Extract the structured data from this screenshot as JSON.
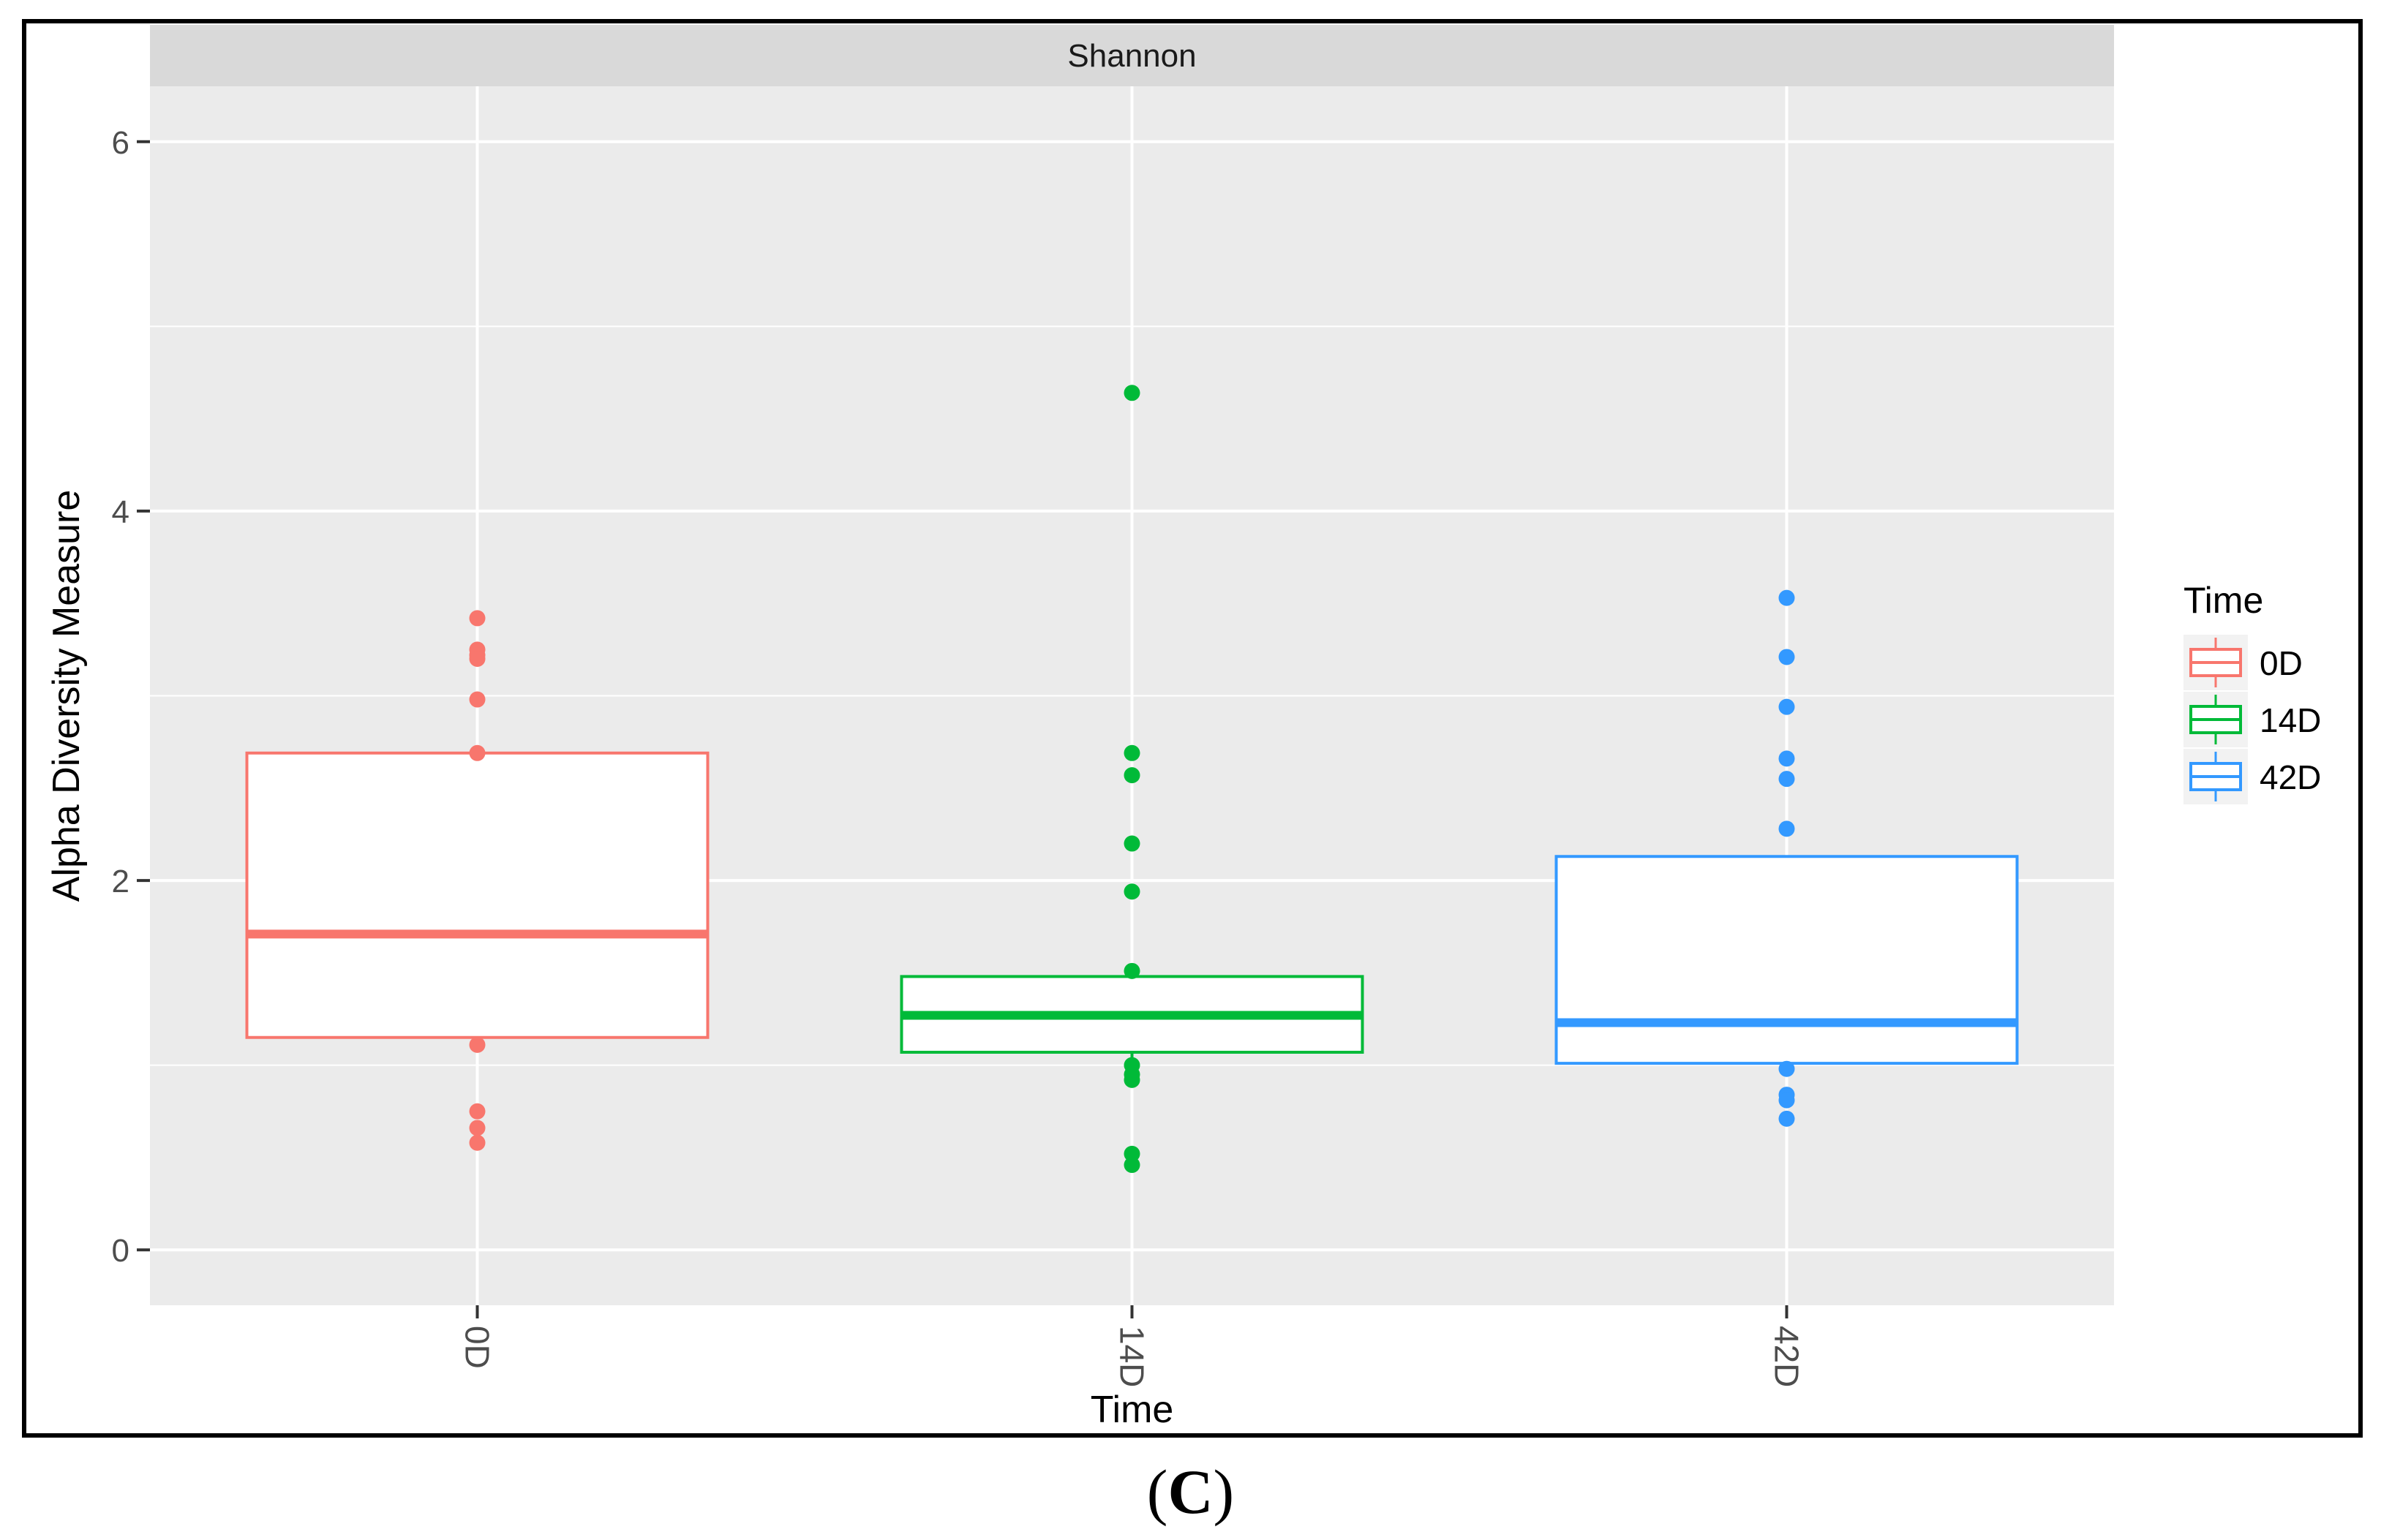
{
  "panel_label": {
    "letter": "C"
  },
  "chart_data": {
    "type": "box",
    "facet_title": "Shannon",
    "xlabel": "Time",
    "ylabel": "Alpha Diversity Measure",
    "categories": [
      "0D",
      "14D",
      "42D"
    ],
    "ylim": [
      -0.3,
      6.3
    ],
    "yticks": [
      0,
      2,
      4,
      6
    ],
    "grid": true,
    "legend": {
      "title": "Time",
      "placement": "right",
      "entries": [
        "0D",
        "14D",
        "42D"
      ]
    },
    "colors": {
      "0D": "#F8766D",
      "14D": "#00BA38",
      "42D": "#3399FF",
      "panel_bg": "#EBEBEB",
      "strip_bg": "#D9D9D9",
      "grid": "#FFFFFF"
    },
    "boxes": [
      {
        "name": "0D",
        "q1": 1.15,
        "median": 1.71,
        "q3": 2.69,
        "whisker_low": 1.11,
        "whisker_high": 2.69,
        "points": [
          3.42,
          3.25,
          3.22,
          3.2,
          2.98,
          2.69,
          1.11,
          0.75,
          0.66,
          0.58
        ]
      },
      {
        "name": "14D",
        "q1": 1.07,
        "median": 1.27,
        "q3": 1.48,
        "whisker_low": 0.92,
        "whisker_high": 1.51,
        "points": [
          4.64,
          2.69,
          2.57,
          2.2,
          1.94,
          1.51,
          1.0,
          0.95,
          0.92,
          0.52,
          0.46
        ]
      },
      {
        "name": "42D",
        "q1": 1.01,
        "median": 1.23,
        "q3": 2.13,
        "whisker_low": 0.98,
        "whisker_high": 2.13,
        "points": [
          3.53,
          3.21,
          2.94,
          2.66,
          2.55,
          2.28,
          0.98,
          0.84,
          0.81,
          0.71
        ]
      }
    ]
  }
}
